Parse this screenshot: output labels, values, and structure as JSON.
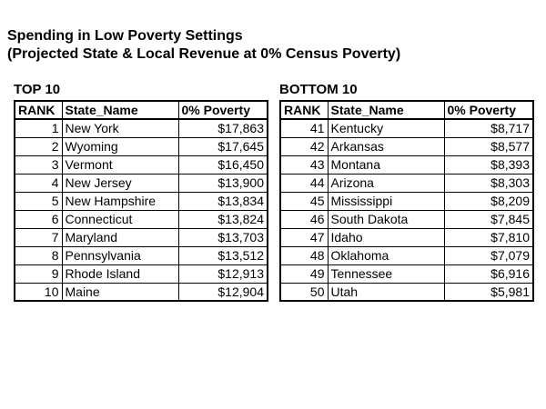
{
  "page": {
    "background": "#ffffff",
    "text_color": "#000000",
    "title_line1": "Spending in Low Poverty Settings",
    "title_line2": "(Projected State & Local Revenue at 0% Census Poverty)"
  },
  "tables": {
    "top": {
      "label": "TOP 10",
      "headers": [
        "RANK",
        "State_Name",
        "0% Poverty"
      ],
      "rows": [
        {
          "rank": "1",
          "state": "New York",
          "value": "$17,863"
        },
        {
          "rank": "2",
          "state": "Wyoming",
          "value": "$17,645"
        },
        {
          "rank": "3",
          "state": "Vermont",
          "value": "$16,450"
        },
        {
          "rank": "4",
          "state": "New Jersey",
          "value": "$13,900"
        },
        {
          "rank": "5",
          "state": "New Hampshire",
          "value": "$13,834"
        },
        {
          "rank": "6",
          "state": "Connecticut",
          "value": "$13,824"
        },
        {
          "rank": "7",
          "state": "Maryland",
          "value": "$13,703"
        },
        {
          "rank": "8",
          "state": "Pennsylvania",
          "value": "$13,512"
        },
        {
          "rank": "9",
          "state": "Rhode Island",
          "value": "$12,913"
        },
        {
          "rank": "10",
          "state": "Maine",
          "value": "$12,904"
        }
      ]
    },
    "bottom": {
      "label": "BOTTOM 10",
      "headers": [
        "RANK",
        "State_Name",
        "0% Poverty"
      ],
      "rows": [
        {
          "rank": "41",
          "state": "Kentucky",
          "value": "$8,717"
        },
        {
          "rank": "42",
          "state": "Arkansas",
          "value": "$8,577"
        },
        {
          "rank": "43",
          "state": "Montana",
          "value": "$8,393"
        },
        {
          "rank": "44",
          "state": "Arizona",
          "value": "$8,303"
        },
        {
          "rank": "45",
          "state": "Mississippi",
          "value": "$8,209"
        },
        {
          "rank": "46",
          "state": "South Dakota",
          "value": "$7,845"
        },
        {
          "rank": "47",
          "state": "Idaho",
          "value": "$7,810"
        },
        {
          "rank": "48",
          "state": "Oklahoma",
          "value": "$7,079"
        },
        {
          "rank": "49",
          "state": "Tennessee",
          "value": "$6,916"
        },
        {
          "rank": "50",
          "state": "Utah",
          "value": "$5,981"
        }
      ]
    }
  }
}
